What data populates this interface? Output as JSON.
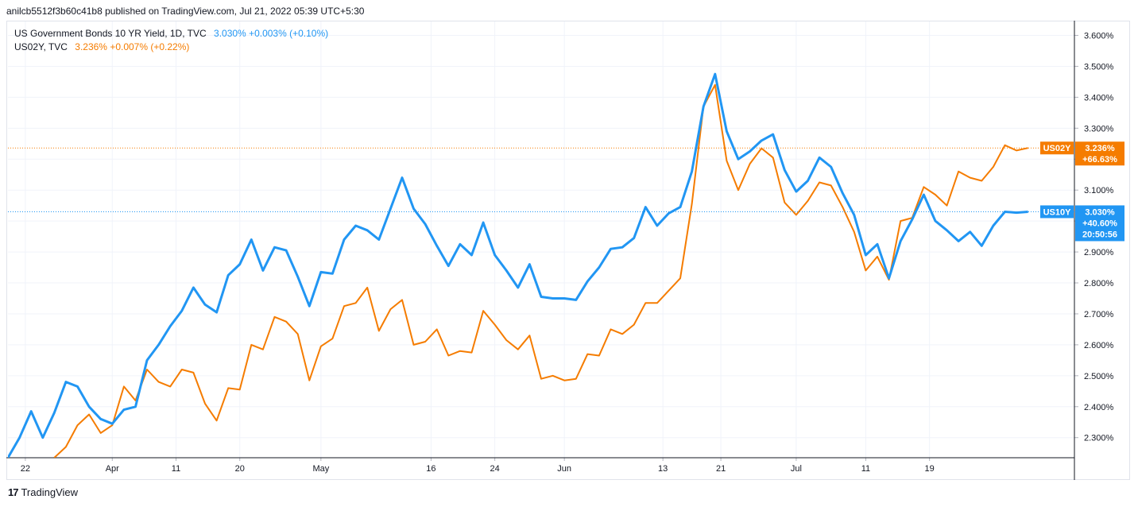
{
  "header": {
    "published_line": "anilcb5512f3b60c41b8 published on TradingView.com, Jul 21, 2022 05:39 UTC+5:30"
  },
  "legend": {
    "us10y": {
      "name": "US Government Bonds 10 YR Yield, 1D, TVC",
      "values": "3.030%  +0.003% (+0.10%)",
      "color": "#2196f3"
    },
    "us02y": {
      "name": "US02Y, TVC",
      "values": "3.236%  +0.007% (+0.22%)",
      "color": "#f57c00"
    }
  },
  "footer": {
    "logo_mark": "17",
    "logo_text": "TradingView"
  },
  "chart_data": {
    "type": "line",
    "title": "US Government Bonds 10 YR Yield vs US02Y",
    "ylim": [
      2.235,
      3.645
    ],
    "y_ticks": [
      2.3,
      2.4,
      2.5,
      2.6,
      2.7,
      2.8,
      2.9,
      3.0,
      3.1,
      3.2,
      3.3,
      3.4,
      3.5,
      3.6
    ],
    "y_tick_labels": [
      "2.300%",
      "2.400%",
      "2.500%",
      "2.600%",
      "2.700%",
      "2.800%",
      "2.900%",
      "3.000%",
      "3.100%",
      "3.200%",
      "3.300%",
      "3.400%",
      "3.500%",
      "3.600%"
    ],
    "x_range": [
      0,
      92
    ],
    "x_ticks": [
      {
        "i": 1.5,
        "label": "22"
      },
      {
        "i": 9,
        "label": "Apr"
      },
      {
        "i": 14.5,
        "label": "11"
      },
      {
        "i": 20,
        "label": "20"
      },
      {
        "i": 27,
        "label": "May"
      },
      {
        "i": 36.5,
        "label": "16"
      },
      {
        "i": 42,
        "label": "24"
      },
      {
        "i": 48,
        "label": "Jun"
      },
      {
        "i": 56.5,
        "label": "13"
      },
      {
        "i": 61.5,
        "label": "21"
      },
      {
        "i": 68,
        "label": "Jul"
      },
      {
        "i": 74,
        "label": "11"
      },
      {
        "i": 79.5,
        "label": "19"
      }
    ],
    "series": [
      {
        "name": "US10Y",
        "color": "#2196f3",
        "start_index": 0,
        "values": [
          2.235,
          2.3,
          2.385,
          2.3,
          2.38,
          2.48,
          2.465,
          2.4,
          2.36,
          2.345,
          2.39,
          2.4,
          2.55,
          2.6,
          2.66,
          2.71,
          2.785,
          2.73,
          2.705,
          2.825,
          2.86,
          2.94,
          2.84,
          2.915,
          2.905,
          2.82,
          2.725,
          2.835,
          2.83,
          2.94,
          2.985,
          2.97,
          2.94,
          3.04,
          3.14,
          3.04,
          2.99,
          2.92,
          2.855,
          2.925,
          2.89,
          2.995,
          2.89,
          2.84,
          2.785,
          2.86,
          2.755,
          2.75,
          2.75,
          2.745,
          2.805,
          2.85,
          2.91,
          2.915,
          2.945,
          3.045,
          2.985,
          3.025,
          3.045,
          3.16,
          3.37,
          3.475,
          3.29,
          3.2,
          3.225,
          3.26,
          3.28,
          3.165,
          3.095,
          3.13,
          3.205,
          3.175,
          3.09,
          3.02,
          2.89,
          2.925,
          2.815,
          2.935,
          3.005,
          3.085,
          3.0,
          2.97,
          2.935,
          2.965,
          2.92,
          2.985,
          3.03,
          3.027,
          3.03
        ],
        "last_label": "US10Y",
        "last_value_label": "3.030%",
        "last_change_label": "+40.60%",
        "countdown": "20:50:56"
      },
      {
        "name": "US02Y",
        "color": "#f57c00",
        "start_index": 4,
        "values": [
          2.235,
          2.27,
          2.34,
          2.375,
          2.315,
          2.34,
          2.465,
          2.42,
          2.52,
          2.48,
          2.465,
          2.52,
          2.51,
          2.41,
          2.355,
          2.46,
          2.455,
          2.6,
          2.585,
          2.69,
          2.675,
          2.635,
          2.485,
          2.595,
          2.62,
          2.725,
          2.735,
          2.785,
          2.645,
          2.715,
          2.745,
          2.6,
          2.61,
          2.65,
          2.565,
          2.58,
          2.575,
          2.71,
          2.665,
          2.615,
          2.585,
          2.63,
          2.49,
          2.5,
          2.485,
          2.49,
          2.57,
          2.565,
          2.65,
          2.635,
          2.665,
          2.735,
          2.735,
          2.775,
          2.815,
          3.055,
          3.37,
          3.44,
          3.195,
          3.1,
          3.185,
          3.235,
          3.205,
          3.06,
          3.02,
          3.065,
          3.125,
          3.115,
          3.045,
          2.965,
          2.84,
          2.885,
          2.81,
          3.0,
          3.01,
          3.11,
          3.085,
          3.05,
          3.16,
          3.14,
          3.13,
          3.175,
          3.245,
          3.228,
          3.236
        ],
        "last_label": "US02Y",
        "last_value_label": "3.236%",
        "last_change_label": "+66.63%"
      }
    ]
  }
}
